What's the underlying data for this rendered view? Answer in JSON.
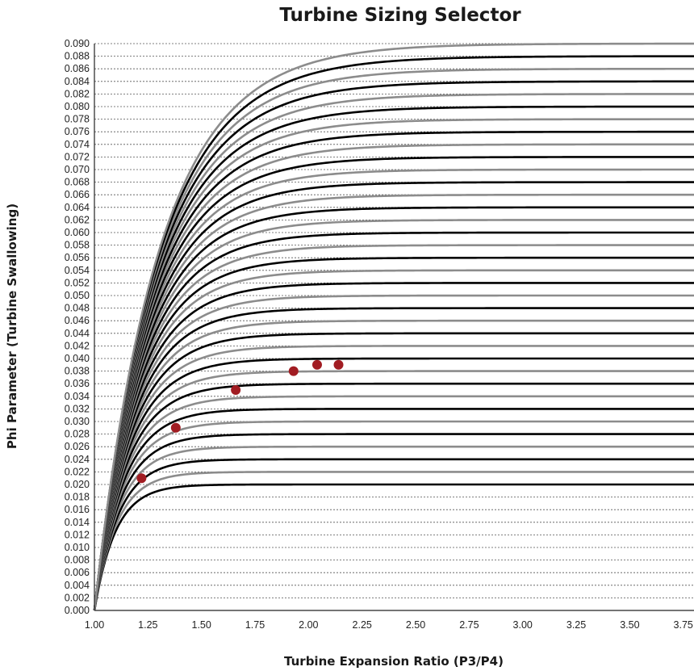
{
  "chart_data": {
    "type": "line",
    "title": "Turbine Sizing Selector",
    "xlabel": "Turbine Expansion Ratio (P3/P4)",
    "ylabel": "Phi Parameter (Turbine Swallowing)",
    "xlim": [
      1.0,
      3.8
    ],
    "ylim": [
      0.0,
      0.09
    ],
    "x_ticks": [
      "1.00",
      "1.25",
      "1.50",
      "1.75",
      "2.00",
      "2.25",
      "2.50",
      "2.75",
      "3.00",
      "3.25",
      "3.50",
      "3.75"
    ],
    "y_ticks": [
      "0.000",
      "0.002",
      "0.004",
      "0.006",
      "0.008",
      "0.010",
      "0.012",
      "0.014",
      "0.016",
      "0.018",
      "0.020",
      "0.022",
      "0.024",
      "0.026",
      "0.028",
      "0.030",
      "0.032",
      "0.034",
      "0.036",
      "0.038",
      "0.040",
      "0.042",
      "0.044",
      "0.046",
      "0.048",
      "0.050",
      "0.052",
      "0.054",
      "0.056",
      "0.058",
      "0.060",
      "0.062",
      "0.064",
      "0.066",
      "0.068",
      "0.070",
      "0.072",
      "0.074",
      "0.076",
      "0.078",
      "0.080",
      "0.082",
      "0.084",
      "0.086",
      "0.088",
      "0.090"
    ],
    "grid": "horizontal dashed",
    "curve_asymptotes": [
      0.02,
      0.022,
      0.024,
      0.026,
      0.028,
      0.03,
      0.032,
      0.034,
      0.036,
      0.038,
      0.04,
      0.042,
      0.044,
      0.046,
      0.048,
      0.05,
      0.052,
      0.054,
      0.056,
      0.058,
      0.06,
      0.062,
      0.064,
      0.066,
      0.068,
      0.07,
      0.072,
      0.074,
      0.076,
      0.078,
      0.08,
      0.082,
      0.084,
      0.086,
      0.088,
      0.09
    ],
    "curve_colors": [
      "#000000",
      "#8c8c8c"
    ],
    "points": [
      {
        "x": 1.22,
        "y": 0.021
      },
      {
        "x": 1.38,
        "y": 0.029
      },
      {
        "x": 1.66,
        "y": 0.035
      },
      {
        "x": 1.93,
        "y": 0.038
      },
      {
        "x": 2.04,
        "y": 0.039
      },
      {
        "x": 2.14,
        "y": 0.039
      }
    ],
    "point_color": "#a11c22"
  }
}
